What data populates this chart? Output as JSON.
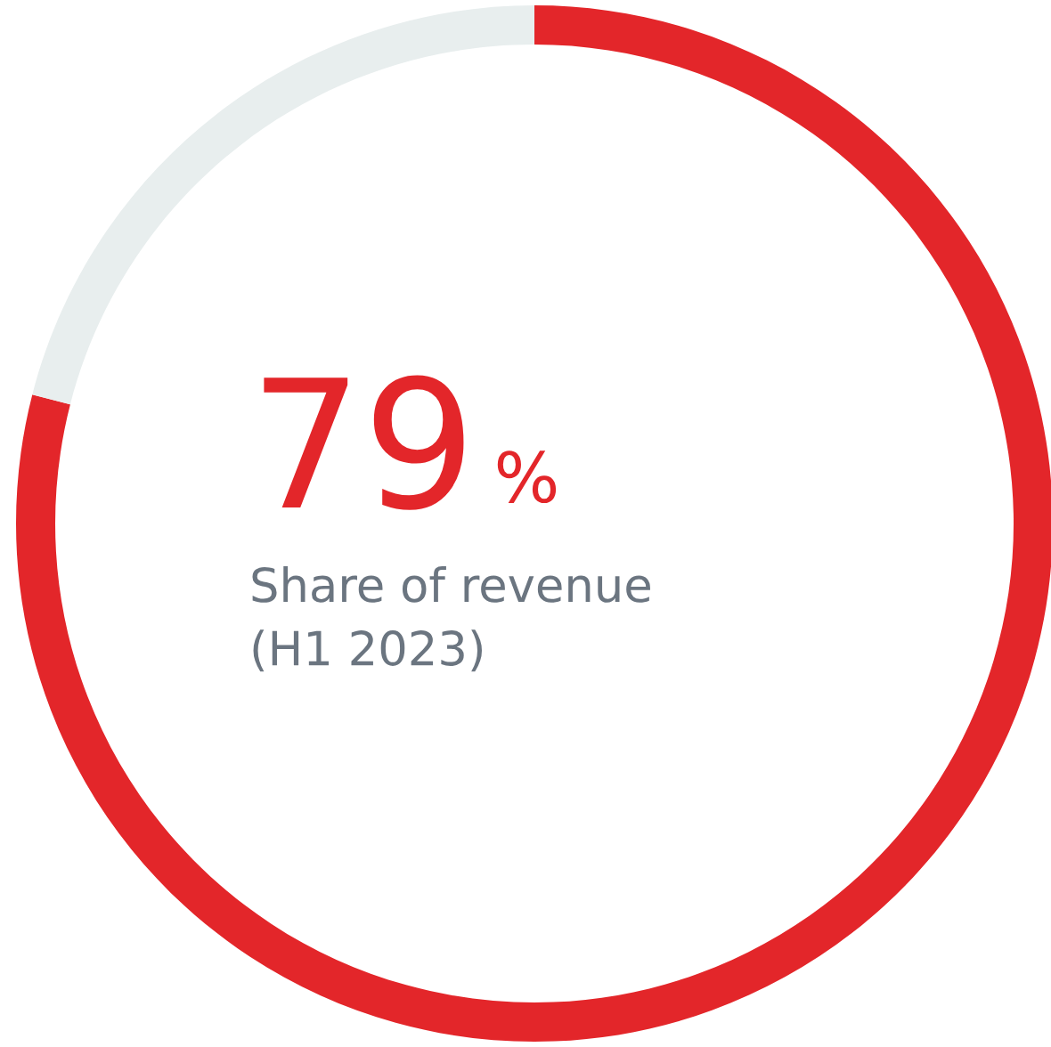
{
  "chart_data": {
    "type": "donut",
    "title": "79 %",
    "subtitle": "Share of revenue\n(H1 2023)",
    "categories": [
      null,
      null
    ],
    "values": [
      79,
      21
    ],
    "colors": [
      "#e3262a",
      "#e8eeee"
    ]
  }
}
